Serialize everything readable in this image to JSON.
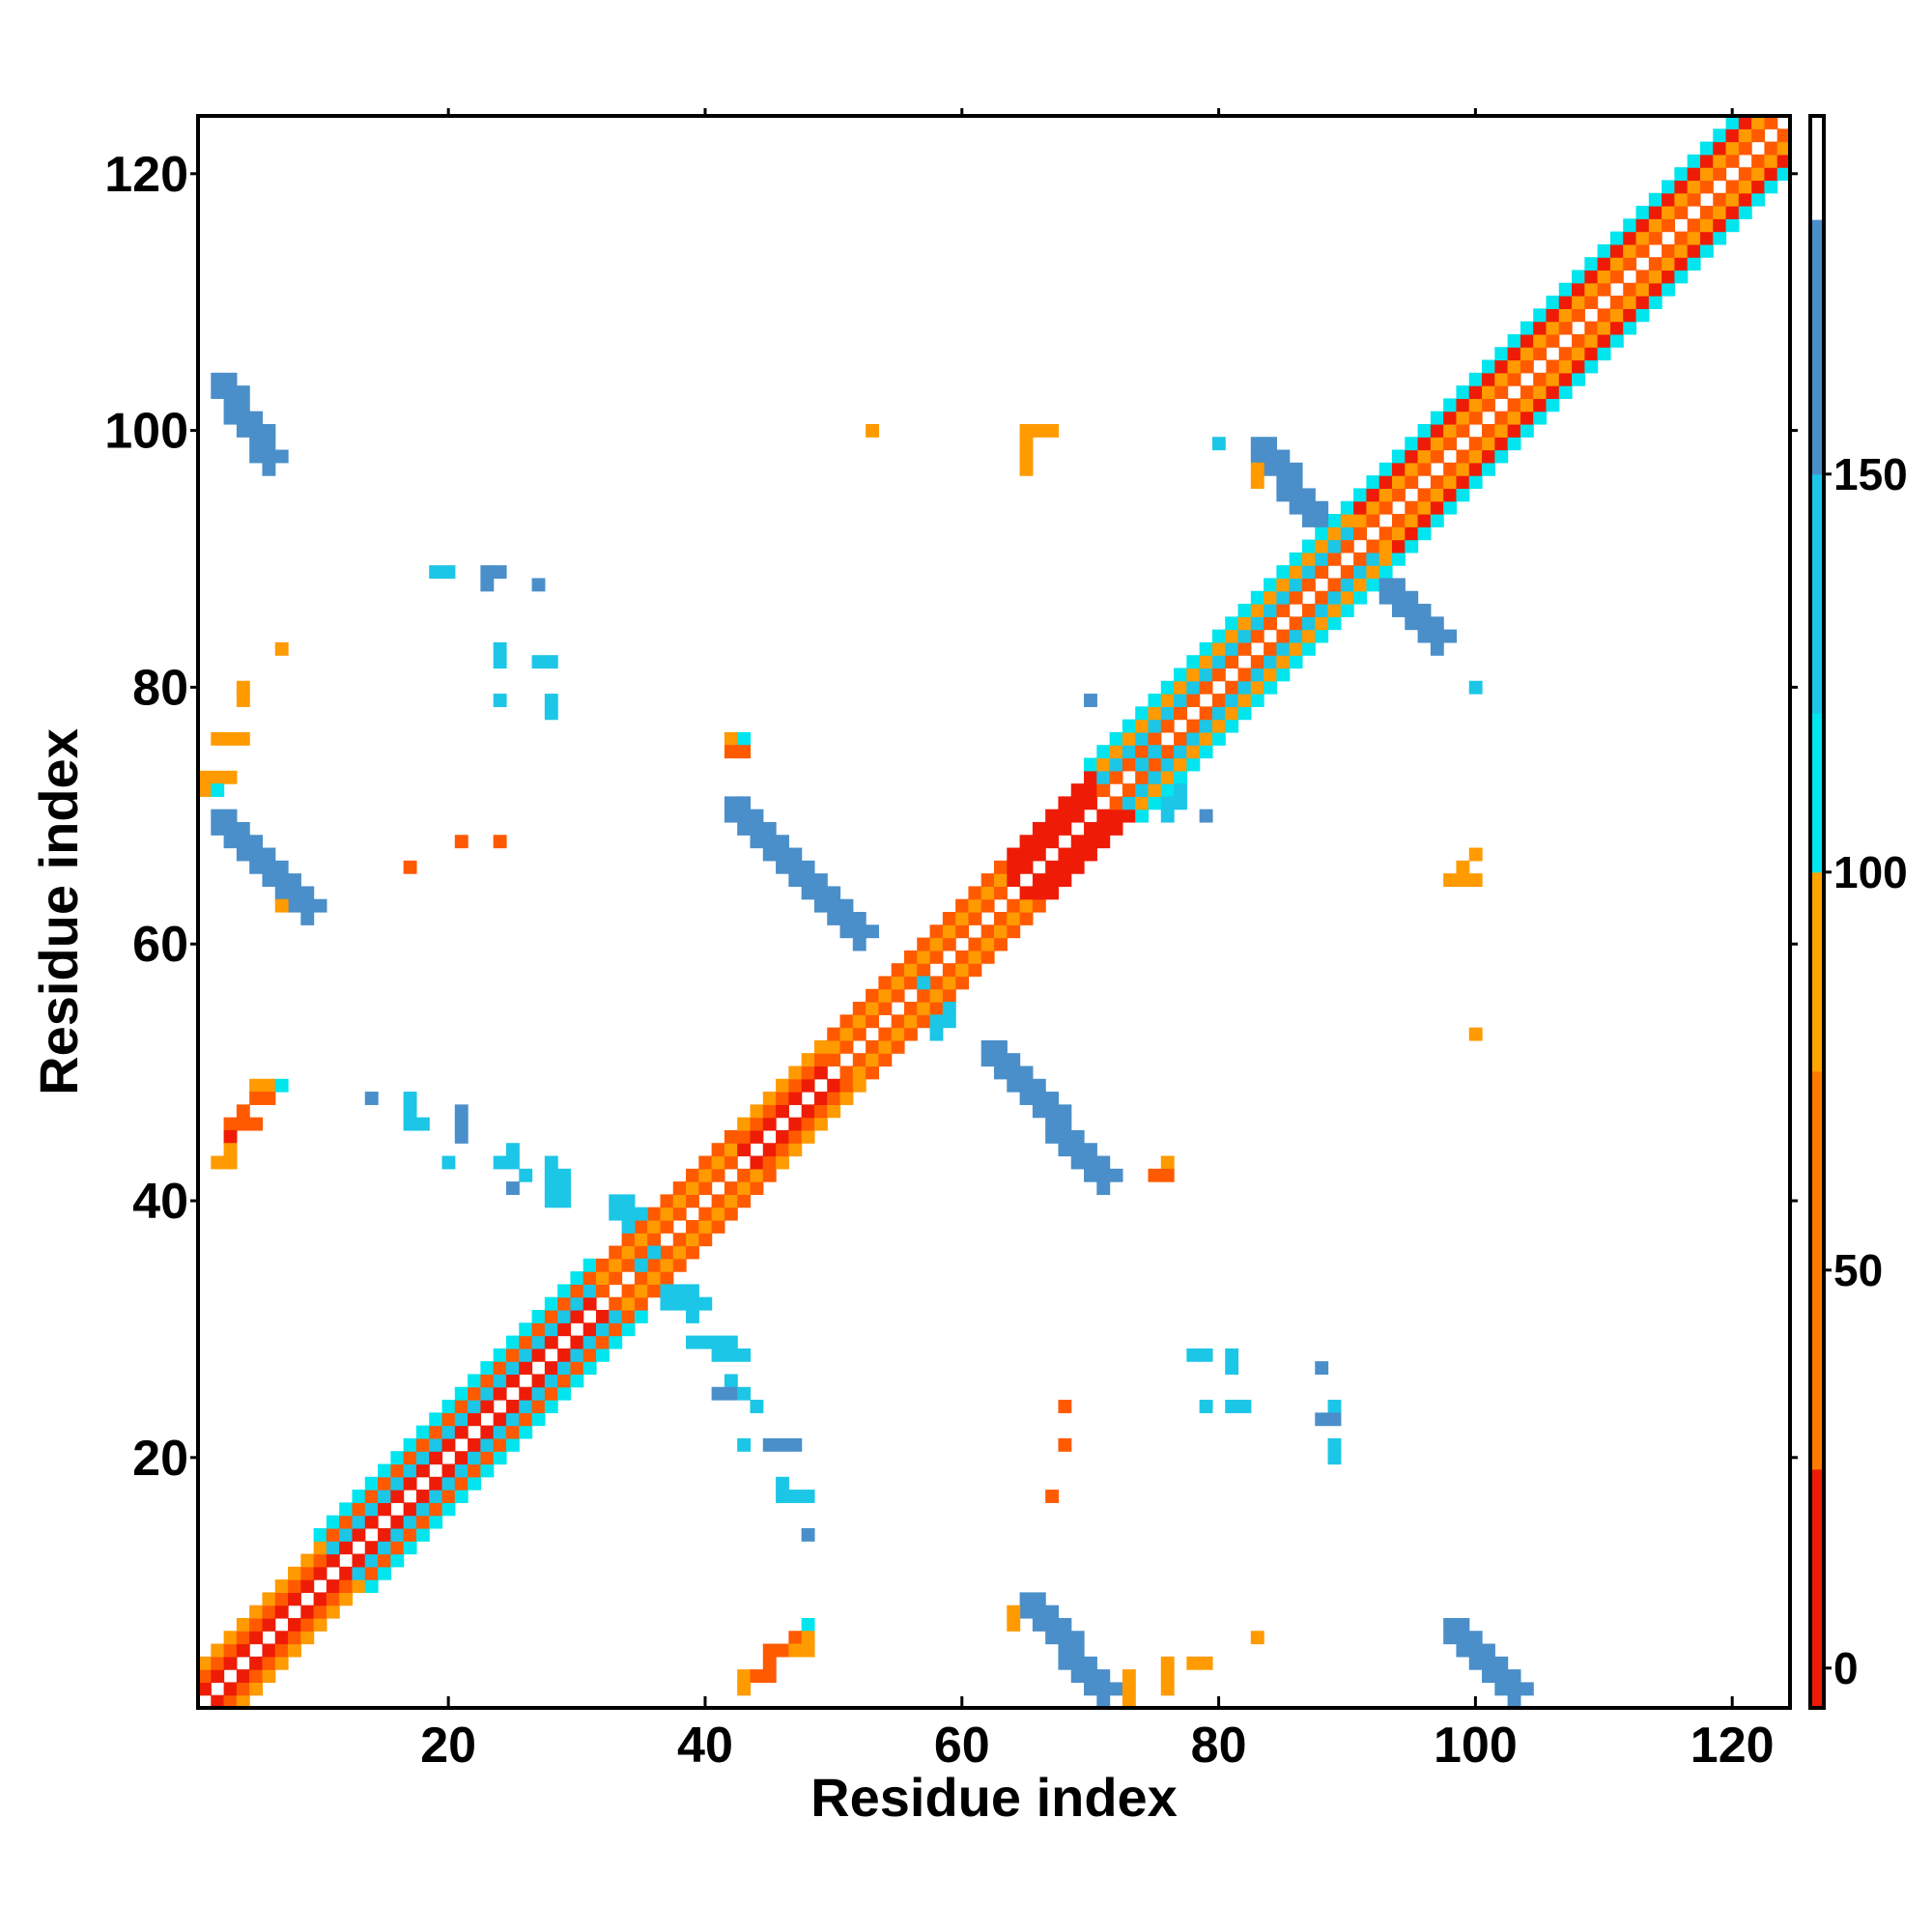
{
  "chart_data": {
    "type": "heatmap",
    "title": "",
    "xlabel": "Residue index",
    "ylabel": "Residue index",
    "xlim": [
      0.5,
      124.5
    ],
    "ylim": [
      0.5,
      124.5
    ],
    "x_ticks": [
      20,
      40,
      60,
      80,
      100,
      120
    ],
    "y_ticks": [
      20,
      40,
      60,
      80,
      100,
      120
    ],
    "colorbar": {
      "ticks": [
        0,
        50,
        100,
        150
      ],
      "range": [
        -5,
        195
      ],
      "bands": [
        {
          "from": -5,
          "to": 25,
          "color": "#ee1c06"
        },
        {
          "from": 25,
          "to": 75,
          "color": "#ff7b00"
        },
        {
          "from": 75,
          "to": 100,
          "color": "#ffa500"
        },
        {
          "from": 100,
          "to": 120,
          "color": "#00e5ee"
        },
        {
          "from": 120,
          "to": 150,
          "color": "#1cc6e6"
        },
        {
          "from": 150,
          "to": 182,
          "color": "#4a8fc9"
        },
        {
          "from": 182,
          "to": 195,
          "color": "#ffffff"
        }
      ]
    },
    "categories": [
      {
        "name": "red",
        "color": "#ee1c06"
      },
      {
        "name": "orange-red",
        "color": "#ff5a00"
      },
      {
        "name": "orange",
        "color": "#ff9a00"
      },
      {
        "name": "cyan",
        "color": "#00e5ee"
      },
      {
        "name": "light-blue",
        "color": "#1cc6e6"
      },
      {
        "name": "steel-blue",
        "color": "#4a8fc9"
      }
    ],
    "diagonal_band": {
      "segments": [
        {
          "from": 1,
          "to": 10,
          "offset1": "red",
          "offset2": "orange-red",
          "offset3": "orange"
        },
        {
          "from": 10,
          "to": 31,
          "offset1": "red",
          "offset2": "light-blue",
          "offset3": "orange-red",
          "offset4": "cyan"
        },
        {
          "from": 31,
          "to": 42,
          "offset1": "orange-red",
          "offset2": "orange",
          "offset3": "orange-red"
        },
        {
          "from": 42,
          "to": 49,
          "offset1": "red",
          "offset2": "orange-red",
          "offset3": "orange"
        },
        {
          "from": 49,
          "to": 63,
          "offset1": "orange-red",
          "offset2": "orange",
          "offset3": "orange-red"
        },
        {
          "from": 63,
          "to": 70,
          "offset1": "red",
          "offset2": "red",
          "offset3": "red"
        },
        {
          "from": 70,
          "to": 90,
          "offset1": "orange-red",
          "offset2": "light-blue",
          "offset3": "orange",
          "offset4": "cyan"
        },
        {
          "from": 90,
          "to": 124,
          "offset1": "orange-red",
          "offset2": "orange",
          "offset3": "red",
          "offset4": "cyan"
        }
      ]
    },
    "stripes": [
      {
        "x1": 2,
        "y1": 104,
        "x2": 6,
        "y2": 98,
        "color": "steel-blue"
      },
      {
        "x1": 2,
        "y1": 70,
        "x2": 9,
        "y2": 63,
        "color": "steel-blue"
      },
      {
        "x1": 42,
        "y1": 71,
        "x2": 52,
        "y2": 61,
        "color": "steel-blue"
      },
      {
        "x1": 62,
        "y1": 52,
        "x2": 71,
        "y2": 42,
        "color": "steel-blue"
      },
      {
        "x1": 65,
        "y1": 9,
        "x2": 71,
        "y2": 2,
        "color": "steel-blue"
      },
      {
        "x1": 98,
        "y1": 7,
        "x2": 103,
        "y2": 2,
        "color": "steel-blue"
      },
      {
        "x1": 83,
        "y1": 99,
        "x2": 89,
        "y2": 91,
        "color": "steel-blue"
      },
      {
        "x1": 92,
        "y1": 89,
        "x2": 97,
        "y2": 84,
        "color": "steel-blue"
      },
      {
        "x1": 33,
        "y1": 40,
        "x2": 35,
        "y2": 36,
        "color": "light-blue"
      },
      {
        "x1": 36,
        "y1": 34,
        "x2": 39,
        "y2": 32,
        "color": "light-blue"
      },
      {
        "x1": 56,
        "y1": 58,
        "x2": 58,
        "y2": 54,
        "color": "light-blue"
      },
      {
        "x1": 73,
        "y1": 77,
        "x2": 76,
        "y2": 71,
        "color": "light-blue"
      }
    ],
    "points": [
      {
        "x": 53,
        "y": 100,
        "c": "orange"
      },
      {
        "x": 65,
        "y": 100,
        "c": "orange"
      },
      {
        "x": 66,
        "y": 100,
        "c": "orange"
      },
      {
        "x": 67,
        "y": 100,
        "c": "orange"
      },
      {
        "x": 65,
        "y": 99,
        "c": "orange"
      },
      {
        "x": 65,
        "y": 98,
        "c": "orange"
      },
      {
        "x": 65,
        "y": 97,
        "c": "orange"
      },
      {
        "x": 80,
        "y": 99,
        "c": "light-blue"
      },
      {
        "x": 83,
        "y": 97,
        "c": "orange"
      },
      {
        "x": 83,
        "y": 96,
        "c": "orange"
      },
      {
        "x": 19,
        "y": 89,
        "c": "light-blue"
      },
      {
        "x": 20,
        "y": 89,
        "c": "light-blue"
      },
      {
        "x": 23,
        "y": 89,
        "c": "steel-blue"
      },
      {
        "x": 24,
        "y": 89,
        "c": "steel-blue"
      },
      {
        "x": 23,
        "y": 88,
        "c": "steel-blue"
      },
      {
        "x": 27,
        "y": 88,
        "c": "steel-blue"
      },
      {
        "x": 7,
        "y": 83,
        "c": "orange"
      },
      {
        "x": 24,
        "y": 83,
        "c": "light-blue"
      },
      {
        "x": 24,
        "y": 82,
        "c": "light-blue"
      },
      {
        "x": 27,
        "y": 82,
        "c": "light-blue"
      },
      {
        "x": 28,
        "y": 82,
        "c": "light-blue"
      },
      {
        "x": 4,
        "y": 80,
        "c": "orange"
      },
      {
        "x": 4,
        "y": 79,
        "c": "orange"
      },
      {
        "x": 24,
        "y": 79,
        "c": "light-blue"
      },
      {
        "x": 28,
        "y": 79,
        "c": "light-blue"
      },
      {
        "x": 28,
        "y": 78,
        "c": "light-blue"
      },
      {
        "x": 2,
        "y": 76,
        "c": "orange"
      },
      {
        "x": 3,
        "y": 76,
        "c": "orange"
      },
      {
        "x": 4,
        "y": 76,
        "c": "orange"
      },
      {
        "x": 1,
        "y": 73,
        "c": "orange"
      },
      {
        "x": 2,
        "y": 73,
        "c": "orange"
      },
      {
        "x": 3,
        "y": 73,
        "c": "orange"
      },
      {
        "x": 1,
        "y": 72,
        "c": "orange"
      },
      {
        "x": 2,
        "y": 72,
        "c": "cyan"
      },
      {
        "x": 42,
        "y": 76,
        "c": "orange"
      },
      {
        "x": 43,
        "y": 76,
        "c": "cyan"
      },
      {
        "x": 42,
        "y": 75,
        "c": "orange-red"
      },
      {
        "x": 43,
        "y": 75,
        "c": "orange-red"
      },
      {
        "x": 70,
        "y": 79,
        "c": "steel-blue"
      },
      {
        "x": 79,
        "y": 70,
        "c": "steel-blue"
      },
      {
        "x": 100,
        "y": 80,
        "c": "light-blue"
      },
      {
        "x": 21,
        "y": 68,
        "c": "orange-red"
      },
      {
        "x": 24,
        "y": 68,
        "c": "orange-red"
      },
      {
        "x": 17,
        "y": 66,
        "c": "orange-red"
      },
      {
        "x": 7,
        "y": 63,
        "c": "orange"
      },
      {
        "x": 8,
        "y": 63,
        "c": "orange"
      },
      {
        "x": 100,
        "y": 67,
        "c": "orange"
      },
      {
        "x": 99,
        "y": 66,
        "c": "orange"
      },
      {
        "x": 98,
        "y": 65,
        "c": "orange"
      },
      {
        "x": 99,
        "y": 65,
        "c": "orange"
      },
      {
        "x": 100,
        "y": 65,
        "c": "orange"
      },
      {
        "x": 100,
        "y": 53,
        "c": "orange"
      },
      {
        "x": 5,
        "y": 49,
        "c": "orange"
      },
      {
        "x": 6,
        "y": 49,
        "c": "orange"
      },
      {
        "x": 7,
        "y": 49,
        "c": "cyan"
      },
      {
        "x": 5,
        "y": 48,
        "c": "orange-red"
      },
      {
        "x": 6,
        "y": 48,
        "c": "orange-red"
      },
      {
        "x": 4,
        "y": 47,
        "c": "orange-red"
      },
      {
        "x": 3,
        "y": 46,
        "c": "orange-red"
      },
      {
        "x": 4,
        "y": 46,
        "c": "orange-red"
      },
      {
        "x": 5,
        "y": 46,
        "c": "orange-red"
      },
      {
        "x": 3,
        "y": 45,
        "c": "red"
      },
      {
        "x": 3,
        "y": 44,
        "c": "orange"
      },
      {
        "x": 2,
        "y": 43,
        "c": "orange"
      },
      {
        "x": 3,
        "y": 43,
        "c": "orange"
      },
      {
        "x": 14,
        "y": 48,
        "c": "steel-blue"
      },
      {
        "x": 17,
        "y": 48,
        "c": "light-blue"
      },
      {
        "x": 17,
        "y": 47,
        "c": "light-blue"
      },
      {
        "x": 17,
        "y": 46,
        "c": "light-blue"
      },
      {
        "x": 18,
        "y": 46,
        "c": "light-blue"
      },
      {
        "x": 21,
        "y": 47,
        "c": "steel-blue"
      },
      {
        "x": 21,
        "y": 46,
        "c": "steel-blue"
      },
      {
        "x": 21,
        "y": 45,
        "c": "steel-blue"
      },
      {
        "x": 25,
        "y": 44,
        "c": "light-blue"
      },
      {
        "x": 24,
        "y": 43,
        "c": "light-blue"
      },
      {
        "x": 25,
        "y": 43,
        "c": "light-blue"
      },
      {
        "x": 26,
        "y": 42,
        "c": "light-blue"
      },
      {
        "x": 25,
        "y": 41,
        "c": "steel-blue"
      },
      {
        "x": 20,
        "y": 43,
        "c": "light-blue"
      },
      {
        "x": 28,
        "y": 43,
        "c": "light-blue"
      },
      {
        "x": 28,
        "y": 42,
        "c": "light-blue"
      },
      {
        "x": 29,
        "y": 42,
        "c": "light-blue"
      },
      {
        "x": 28,
        "y": 41,
        "c": "light-blue"
      },
      {
        "x": 29,
        "y": 41,
        "c": "light-blue"
      },
      {
        "x": 28,
        "y": 40,
        "c": "light-blue"
      },
      {
        "x": 29,
        "y": 40,
        "c": "light-blue"
      },
      {
        "x": 76,
        "y": 43,
        "c": "orange"
      },
      {
        "x": 75,
        "y": 42,
        "c": "orange-red"
      },
      {
        "x": 76,
        "y": 42,
        "c": "orange-red"
      },
      {
        "x": 39,
        "y": 29,
        "c": "light-blue"
      },
      {
        "x": 40,
        "y": 29,
        "c": "light-blue"
      },
      {
        "x": 41,
        "y": 29,
        "c": "light-blue"
      },
      {
        "x": 42,
        "y": 29,
        "c": "light-blue"
      },
      {
        "x": 41,
        "y": 28,
        "c": "light-blue"
      },
      {
        "x": 42,
        "y": 28,
        "c": "light-blue"
      },
      {
        "x": 43,
        "y": 28,
        "c": "light-blue"
      },
      {
        "x": 42,
        "y": 26,
        "c": "light-blue"
      },
      {
        "x": 41,
        "y": 25,
        "c": "steel-blue"
      },
      {
        "x": 42,
        "y": 25,
        "c": "steel-blue"
      },
      {
        "x": 43,
        "y": 25,
        "c": "light-blue"
      },
      {
        "x": 44,
        "y": 24,
        "c": "light-blue"
      },
      {
        "x": 43,
        "y": 21,
        "c": "light-blue"
      },
      {
        "x": 45,
        "y": 21,
        "c": "steel-blue"
      },
      {
        "x": 46,
        "y": 21,
        "c": "steel-blue"
      },
      {
        "x": 47,
        "y": 21,
        "c": "steel-blue"
      },
      {
        "x": 46,
        "y": 18,
        "c": "light-blue"
      },
      {
        "x": 46,
        "y": 17,
        "c": "light-blue"
      },
      {
        "x": 47,
        "y": 17,
        "c": "light-blue"
      },
      {
        "x": 48,
        "y": 17,
        "c": "light-blue"
      },
      {
        "x": 48,
        "y": 14,
        "c": "steel-blue"
      },
      {
        "x": 68,
        "y": 24,
        "c": "orange-red"
      },
      {
        "x": 68,
        "y": 21,
        "c": "orange-red"
      },
      {
        "x": 67,
        "y": 17,
        "c": "orange-red"
      },
      {
        "x": 78,
        "y": 28,
        "c": "light-blue"
      },
      {
        "x": 79,
        "y": 28,
        "c": "light-blue"
      },
      {
        "x": 81,
        "y": 28,
        "c": "light-blue"
      },
      {
        "x": 81,
        "y": 27,
        "c": "light-blue"
      },
      {
        "x": 88,
        "y": 27,
        "c": "steel-blue"
      },
      {
        "x": 79,
        "y": 24,
        "c": "light-blue"
      },
      {
        "x": 81,
        "y": 24,
        "c": "light-blue"
      },
      {
        "x": 82,
        "y": 24,
        "c": "light-blue"
      },
      {
        "x": 89,
        "y": 24,
        "c": "light-blue"
      },
      {
        "x": 88,
        "y": 23,
        "c": "steel-blue"
      },
      {
        "x": 89,
        "y": 23,
        "c": "steel-blue"
      },
      {
        "x": 89,
        "y": 21,
        "c": "light-blue"
      },
      {
        "x": 89,
        "y": 20,
        "c": "light-blue"
      },
      {
        "x": 48,
        "y": 7,
        "c": "cyan"
      },
      {
        "x": 47,
        "y": 6,
        "c": "orange-red"
      },
      {
        "x": 48,
        "y": 6,
        "c": "orange"
      },
      {
        "x": 45,
        "y": 5,
        "c": "orange-red"
      },
      {
        "x": 46,
        "y": 5,
        "c": "orange-red"
      },
      {
        "x": 47,
        "y": 5,
        "c": "orange"
      },
      {
        "x": 48,
        "y": 5,
        "c": "orange"
      },
      {
        "x": 45,
        "y": 4,
        "c": "orange-red"
      },
      {
        "x": 43,
        "y": 3,
        "c": "orange"
      },
      {
        "x": 44,
        "y": 3,
        "c": "orange-red"
      },
      {
        "x": 45,
        "y": 3,
        "c": "orange-red"
      },
      {
        "x": 43,
        "y": 2,
        "c": "orange"
      },
      {
        "x": 64,
        "y": 8,
        "c": "orange"
      },
      {
        "x": 64,
        "y": 7,
        "c": "orange"
      },
      {
        "x": 73,
        "y": 3,
        "c": "orange"
      },
      {
        "x": 72,
        "y": 2,
        "c": "orange"
      },
      {
        "x": 73,
        "y": 2,
        "c": "orange"
      },
      {
        "x": 73,
        "y": 1,
        "c": "orange"
      },
      {
        "x": 76,
        "y": 4,
        "c": "orange"
      },
      {
        "x": 76,
        "y": 3,
        "c": "orange"
      },
      {
        "x": 76,
        "y": 2,
        "c": "orange"
      },
      {
        "x": 78,
        "y": 4,
        "c": "orange"
      },
      {
        "x": 79,
        "y": 4,
        "c": "orange"
      },
      {
        "x": 83,
        "y": 6,
        "c": "orange"
      }
    ]
  }
}
